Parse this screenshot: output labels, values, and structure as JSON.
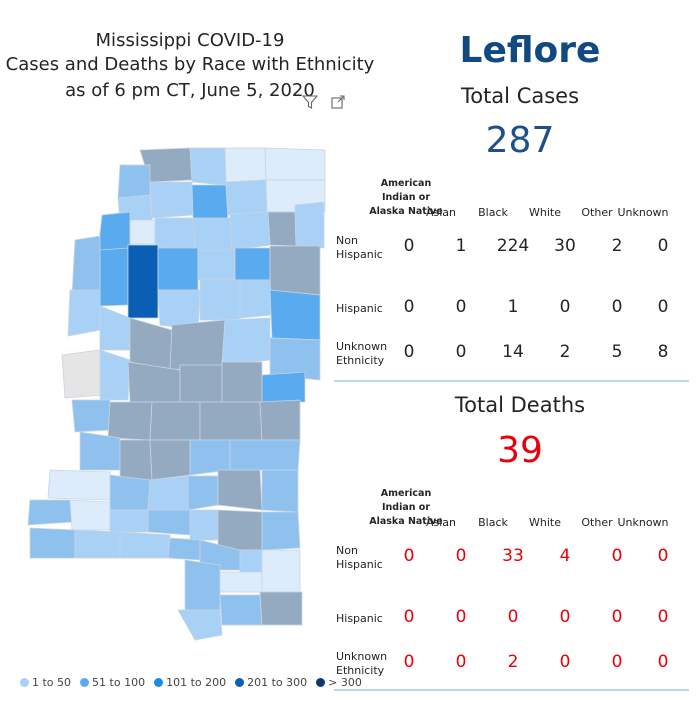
{
  "title": {
    "line1": "Mississippi COVID-19",
    "line2": "Cases and Deaths by Race with Ethnicity",
    "line3": "as of 6 pm CT, June 5, 2020"
  },
  "icons": [
    "filter-icon",
    "expand-icon"
  ],
  "county": "Leflore",
  "cases": {
    "label": "Total Cases",
    "total": "287",
    "color": "#1f4e8c"
  },
  "deaths": {
    "label": "Total Deaths",
    "total": "39",
    "color": "#e8000b"
  },
  "columns": {
    "ai1": "American",
    "ai2": "Indian or",
    "ai3": "Alaska Native",
    "asian": "Asian",
    "black": "Black",
    "white": "White",
    "other": "Other",
    "unknown": "Unknown"
  },
  "rows": {
    "nonhisp1": "Non",
    "nonhisp2": "Hispanic",
    "hisp": "Hispanic",
    "unk1": "Unknown",
    "unk2": "Ethnicity"
  },
  "cases_table": {
    "non_hispanic": [
      "0",
      "1",
      "224",
      "30",
      "2",
      "0"
    ],
    "hispanic": [
      "0",
      "0",
      "1",
      "0",
      "0",
      "0"
    ],
    "unknown": [
      "0",
      "0",
      "14",
      "2",
      "5",
      "8"
    ]
  },
  "deaths_table": {
    "non_hispanic": [
      "0",
      "0",
      "33",
      "4",
      "0",
      "0"
    ],
    "hispanic": [
      "0",
      "0",
      "0",
      "0",
      "0",
      "0"
    ],
    "unknown": [
      "0",
      "0",
      "2",
      "0",
      "0",
      "0"
    ]
  },
  "legend": [
    {
      "label": "1 to 50",
      "color": "#a9d0f5"
    },
    {
      "label": "51 to 100",
      "color": "#5aaaf0"
    },
    {
      "label": "101 to 200",
      "color": "#1b8ae6"
    },
    {
      "label": "201 to 300",
      "color": "#0a5fb4"
    },
    {
      "label": "> 300",
      "color": "#0d3a6e"
    }
  ],
  "chart_data": {
    "type": "heatmap",
    "highlighted_county": "Leflore",
    "highlight_color": "#0a5fb4",
    "bins": [
      "1 to 50",
      "51 to 100",
      "101 to 200",
      "201 to 300",
      "> 300"
    ],
    "table_cases": {
      "columns": [
        "American Indian or Alaska Native",
        "Asian",
        "Black",
        "White",
        "Other",
        "Unknown"
      ],
      "Non Hispanic": [
        0,
        1,
        224,
        30,
        2,
        0
      ],
      "Hispanic": [
        0,
        0,
        1,
        0,
        0,
        0
      ],
      "Unknown Ethnicity": [
        0,
        0,
        14,
        2,
        5,
        8
      ]
    },
    "table_deaths": {
      "columns": [
        "American Indian or Alaska Native",
        "Asian",
        "Black",
        "White",
        "Other",
        "Unknown"
      ],
      "Non Hispanic": [
        0,
        0,
        33,
        4,
        0,
        0
      ],
      "Hispanic": [
        0,
        0,
        0,
        0,
        0,
        0
      ],
      "Unknown Ethnicity": [
        0,
        0,
        2,
        0,
        0,
        0
      ]
    }
  }
}
